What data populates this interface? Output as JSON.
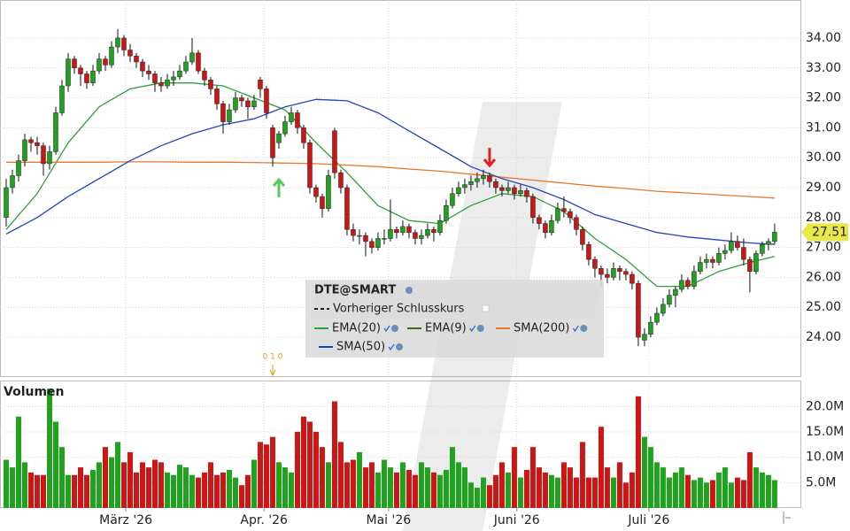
{
  "chart_data": {
    "type": "candlestick",
    "title": "DTE@SMART",
    "up_color": "#1fa31f",
    "down_color": "#cc1515",
    "grid": true,
    "xlim": [
      -1,
      128.3
    ],
    "xticks": [
      {
        "value": 19.3,
        "label": "März '26"
      },
      {
        "value": 41.6,
        "label": "Apr. '26"
      },
      {
        "value": 61.7,
        "label": "Mai '26"
      },
      {
        "value": 82.4,
        "label": "Juni '26"
      },
      {
        "value": 103.7,
        "label": "Juli '26"
      }
    ],
    "ylim": [
      22.7,
      35.27
    ],
    "yticks": [
      {
        "value": 24,
        "label": "24.00"
      },
      {
        "value": 25,
        "label": "25.00"
      },
      {
        "value": 26,
        "label": "26.00"
      },
      {
        "value": 27,
        "label": "27.00"
      },
      {
        "value": 28,
        "label": "28.00"
      },
      {
        "value": 29,
        "label": "29.00"
      },
      {
        "value": 30,
        "label": "30.00"
      },
      {
        "value": 31,
        "label": "31.00"
      },
      {
        "value": 32,
        "label": "32.00"
      },
      {
        "value": 33,
        "label": "33.00"
      },
      {
        "value": 34,
        "label": "34.00"
      }
    ],
    "candles": [
      [
        28.0,
        29.3,
        27.7,
        29.0
      ],
      [
        29.0,
        29.6,
        28.8,
        29.4
      ],
      [
        29.4,
        30.1,
        29.2,
        29.9
      ],
      [
        29.9,
        30.8,
        29.7,
        30.6
      ],
      [
        30.6,
        30.7,
        30.2,
        30.5
      ],
      [
        30.5,
        30.7,
        30.1,
        30.4
      ],
      [
        30.4,
        30.5,
        29.4,
        29.8
      ],
      [
        29.8,
        30.4,
        29.6,
        30.2
      ],
      [
        30.2,
        31.7,
        30.1,
        31.5
      ],
      [
        31.5,
        32.6,
        31.4,
        32.4
      ],
      [
        32.4,
        33.5,
        32.2,
        33.3
      ],
      [
        33.3,
        33.4,
        32.8,
        33.0
      ],
      [
        33.0,
        33.1,
        32.4,
        32.8
      ],
      [
        32.8,
        32.9,
        32.3,
        32.5
      ],
      [
        32.5,
        33.1,
        32.4,
        32.9
      ],
      [
        32.9,
        33.5,
        32.8,
        33.3
      ],
      [
        33.3,
        33.4,
        32.9,
        33.1
      ],
      [
        33.1,
        33.9,
        33.0,
        33.7
      ],
      [
        33.7,
        34.3,
        33.5,
        34.0
      ],
      [
        34.0,
        34.1,
        33.4,
        33.6
      ],
      [
        33.6,
        33.8,
        33.2,
        33.4
      ],
      [
        33.4,
        33.5,
        33.0,
        33.2
      ],
      [
        33.2,
        33.3,
        32.7,
        32.9
      ],
      [
        32.9,
        33.1,
        32.6,
        32.8
      ],
      [
        32.8,
        32.9,
        32.2,
        32.5
      ],
      [
        32.5,
        32.7,
        32.2,
        32.4
      ],
      [
        32.4,
        32.8,
        32.3,
        32.6
      ],
      [
        32.6,
        32.9,
        32.4,
        32.7
      ],
      [
        32.7,
        33.1,
        32.6,
        32.9
      ],
      [
        32.9,
        33.4,
        32.8,
        33.2
      ],
      [
        33.2,
        34.0,
        33.1,
        33.5
      ],
      [
        33.5,
        33.6,
        32.8,
        32.9
      ],
      [
        32.9,
        33.0,
        32.4,
        32.6
      ],
      [
        32.6,
        32.7,
        32.1,
        32.3
      ],
      [
        32.3,
        32.4,
        31.6,
        31.8
      ],
      [
        31.8,
        31.9,
        30.8,
        31.2
      ],
      [
        31.2,
        31.8,
        31.1,
        31.6
      ],
      [
        31.6,
        32.2,
        31.5,
        32.0
      ],
      [
        32.0,
        32.1,
        31.7,
        31.9
      ],
      [
        31.9,
        32.0,
        31.3,
        31.7
      ],
      [
        31.7,
        32.1,
        31.6,
        31.9
      ],
      [
        32.6,
        32.7,
        32.0,
        32.3
      ],
      [
        32.3,
        32.4,
        31.3,
        31.5
      ],
      [
        31.0,
        31.1,
        29.7,
        30.0
      ],
      [
        30.5,
        30.9,
        30.3,
        30.8
      ],
      [
        30.8,
        31.4,
        30.7,
        31.2
      ],
      [
        31.2,
        31.7,
        31.1,
        31.5
      ],
      [
        31.5,
        31.6,
        30.8,
        31.0
      ],
      [
        31.0,
        31.1,
        30.3,
        30.5
      ],
      [
        30.5,
        30.6,
        28.8,
        29.0
      ],
      [
        29.0,
        29.1,
        28.5,
        28.7
      ],
      [
        28.7,
        28.8,
        28.0,
        28.3
      ],
      [
        28.3,
        29.6,
        28.2,
        29.4
      ],
      [
        30.9,
        31.0,
        29.3,
        29.5
      ],
      [
        29.5,
        29.6,
        28.8,
        29.0
      ],
      [
        29.0,
        29.1,
        27.4,
        27.6
      ],
      [
        27.6,
        27.8,
        27.2,
        27.4
      ],
      [
        27.4,
        27.6,
        27.1,
        27.4
      ],
      [
        27.4,
        27.5,
        26.7,
        27.2
      ],
      [
        27.2,
        27.3,
        26.8,
        27.0
      ],
      [
        27.0,
        27.5,
        26.9,
        27.3
      ],
      [
        27.3,
        27.6,
        27.1,
        27.3
      ],
      [
        27.3,
        28.6,
        27.2,
        27.6
      ],
      [
        27.6,
        27.7,
        27.3,
        27.5
      ],
      [
        27.5,
        27.9,
        27.4,
        27.7
      ],
      [
        27.7,
        27.8,
        27.3,
        27.5
      ],
      [
        27.5,
        27.6,
        27.1,
        27.3
      ],
      [
        27.3,
        27.6,
        27.1,
        27.4
      ],
      [
        27.4,
        27.8,
        27.3,
        27.6
      ],
      [
        27.6,
        27.7,
        27.2,
        27.5
      ],
      [
        27.5,
        28.1,
        27.4,
        27.9
      ],
      [
        27.9,
        28.6,
        27.8,
        28.4
      ],
      [
        28.4,
        29.0,
        28.3,
        28.8
      ],
      [
        28.8,
        29.2,
        28.7,
        29.0
      ],
      [
        29.0,
        29.3,
        28.8,
        29.1
      ],
      [
        29.1,
        29.4,
        28.9,
        29.2
      ],
      [
        29.2,
        29.5,
        29.0,
        29.3
      ],
      [
        29.3,
        29.6,
        29.1,
        29.4
      ],
      [
        29.4,
        29.5,
        29.0,
        29.2
      ],
      [
        29.2,
        29.3,
        28.8,
        29.0
      ],
      [
        29.0,
        29.1,
        28.7,
        28.9
      ],
      [
        28.9,
        29.2,
        28.8,
        29.0
      ],
      [
        29.0,
        29.1,
        28.6,
        28.8
      ],
      [
        28.8,
        29.1,
        28.7,
        28.9
      ],
      [
        28.9,
        29.0,
        28.5,
        28.7
      ],
      [
        28.7,
        28.8,
        27.8,
        28.0
      ],
      [
        28.0,
        28.1,
        27.6,
        27.8
      ],
      [
        27.8,
        27.9,
        27.3,
        27.5
      ],
      [
        27.5,
        28.1,
        27.4,
        27.9
      ],
      [
        27.9,
        28.5,
        27.8,
        28.3
      ],
      [
        28.3,
        28.7,
        28.0,
        28.2
      ],
      [
        28.2,
        28.3,
        27.8,
        28.0
      ],
      [
        28.0,
        28.1,
        27.4,
        27.6
      ],
      [
        27.6,
        27.7,
        26.9,
        27.1
      ],
      [
        27.1,
        27.2,
        26.4,
        26.6
      ],
      [
        26.6,
        26.7,
        26.0,
        26.3
      ],
      [
        26.3,
        26.4,
        25.7,
        26.1
      ],
      [
        26.1,
        26.3,
        25.8,
        26.0
      ],
      [
        26.0,
        26.5,
        25.9,
        26.3
      ],
      [
        26.3,
        26.4,
        25.9,
        26.2
      ],
      [
        26.2,
        26.3,
        25.9,
        26.1
      ],
      [
        26.1,
        26.2,
        25.6,
        25.8
      ],
      [
        25.8,
        25.9,
        23.7,
        24.0
      ],
      [
        23.9,
        24.3,
        23.7,
        24.1
      ],
      [
        24.1,
        24.7,
        24.0,
        24.5
      ],
      [
        24.5,
        25.0,
        24.4,
        24.8
      ],
      [
        24.8,
        25.3,
        24.7,
        25.1
      ],
      [
        25.1,
        25.6,
        25.0,
        25.4
      ],
      [
        25.4,
        25.7,
        25.0,
        25.6
      ],
      [
        25.6,
        26.1,
        25.5,
        25.9
      ],
      [
        25.9,
        26.0,
        25.6,
        25.7
      ],
      [
        25.7,
        26.4,
        25.6,
        26.2
      ],
      [
        26.2,
        26.7,
        26.1,
        26.5
      ],
      [
        26.5,
        26.8,
        26.3,
        26.6
      ],
      [
        26.6,
        26.7,
        26.3,
        26.5
      ],
      [
        26.5,
        27.0,
        26.4,
        26.8
      ],
      [
        26.8,
        27.1,
        26.6,
        26.9
      ],
      [
        26.9,
        27.5,
        26.8,
        27.2
      ],
      [
        27.2,
        27.4,
        26.9,
        27.0
      ],
      [
        27.0,
        27.3,
        26.4,
        26.6
      ],
      [
        26.6,
        26.7,
        25.5,
        26.2
      ],
      [
        26.2,
        26.9,
        26.1,
        26.8
      ],
      [
        26.8,
        27.2,
        26.7,
        27.1
      ],
      [
        27.1,
        27.3,
        26.9,
        27.2
      ],
      [
        27.2,
        27.8,
        27.1,
        27.51
      ]
    ],
    "ma_x": [
      0,
      5,
      10,
      15,
      20,
      25,
      30,
      35,
      40,
      45,
      50,
      55,
      60,
      65,
      70,
      75,
      80,
      85,
      90,
      95,
      100,
      105,
      110,
      115,
      120,
      124
    ],
    "series": [
      {
        "name": "EMA(20)",
        "color": "#2e9e3e",
        "values": [
          27.6,
          28.8,
          30.5,
          31.7,
          32.3,
          32.5,
          32.5,
          32.4,
          32.0,
          31.6,
          30.5,
          29.5,
          28.4,
          27.9,
          27.8,
          28.4,
          28.8,
          28.7,
          28.2,
          27.3,
          26.6,
          25.7,
          25.7,
          26.2,
          26.5,
          26.7
        ]
      },
      {
        "name": "EMA(9)",
        "color": "#3a6e1a"
      },
      {
        "name": "SMA(200)",
        "color": "#e8772a",
        "values": [
          29.85,
          29.85,
          29.85,
          29.85,
          29.86,
          29.86,
          29.85,
          29.85,
          29.84,
          29.82,
          29.8,
          29.75,
          29.7,
          29.62,
          29.55,
          29.45,
          29.35,
          29.25,
          29.15,
          29.05,
          28.97,
          28.88,
          28.82,
          28.76,
          28.7,
          28.65
        ]
      },
      {
        "name": "SMA(50)",
        "color": "#2244bb",
        "values": [
          27.45,
          28.0,
          28.7,
          29.3,
          29.9,
          30.4,
          30.8,
          31.1,
          31.3,
          31.7,
          31.95,
          31.9,
          31.5,
          30.9,
          30.3,
          29.7,
          29.3,
          29.0,
          28.6,
          28.1,
          27.8,
          27.5,
          27.35,
          27.25,
          27.15,
          27.1
        ]
      }
    ],
    "previous_close_label": "Vorheriger Schlusskurs",
    "markers": [
      {
        "x": 44,
        "y": 29.5,
        "direction": "up",
        "color": "#5cc85c"
      },
      {
        "x": 78,
        "y": 29.5,
        "direction": "down",
        "color": "#e02020"
      }
    ],
    "annotation": {
      "x": 43,
      "text": "0 1 0"
    },
    "volume": {
      "label": "Volumen",
      "ylim": [
        0,
        25.1
      ],
      "yticks": [
        {
          "value": 5,
          "label": "5.0M"
        },
        {
          "value": 10,
          "label": "10.0M"
        },
        {
          "value": 15,
          "label": "15.0M"
        },
        {
          "value": 20,
          "label": "20.0M"
        }
      ],
      "values": [
        9.5,
        8,
        18,
        9,
        7,
        6.5,
        6.5,
        23.5,
        17,
        12,
        6.5,
        6.5,
        8,
        6.5,
        7.5,
        9,
        12,
        10,
        13,
        9,
        11,
        7,
        9,
        8,
        9.5,
        9,
        7,
        6.5,
        8.5,
        8,
        6.5,
        6,
        7,
        9,
        6.5,
        7,
        7.5,
        6,
        4.5,
        6.5,
        9.5,
        13,
        12.5,
        14,
        9,
        8,
        7,
        15,
        18,
        17,
        15,
        12,
        9,
        21,
        13,
        9,
        9.5,
        11,
        8,
        9,
        7,
        9.5,
        8,
        7,
        9,
        7.5,
        6.5,
        9,
        8,
        7,
        6.5,
        7.5,
        12,
        9,
        8,
        5,
        4,
        6,
        4.5,
        6.5,
        9,
        7,
        12,
        6,
        7.5,
        12,
        8,
        7,
        6.5,
        6,
        9,
        8,
        6,
        13,
        6,
        6,
        16,
        8,
        6,
        9,
        5,
        7,
        22,
        14,
        12,
        9,
        8,
        6,
        7,
        8,
        6.5,
        5.5,
        6,
        5,
        5.5,
        7,
        8,
        5,
        6,
        5.5,
        11,
        8,
        7,
        6.5,
        5.5
      ]
    }
  }
}
